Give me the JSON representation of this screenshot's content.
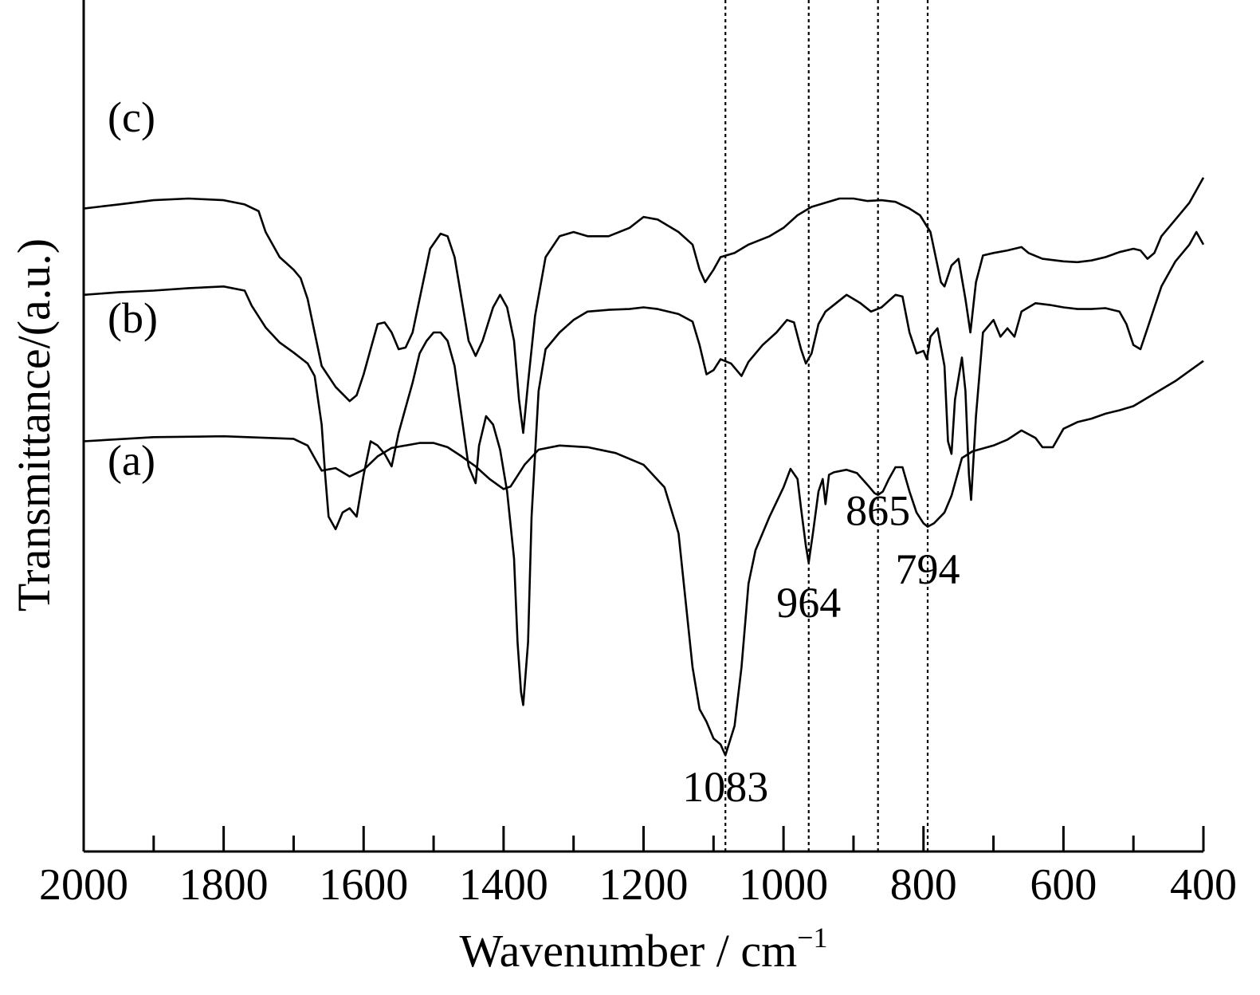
{
  "chart_data": {
    "type": "line",
    "xlabel": "Wavenumber / cm",
    "xlabel_sup": "−1",
    "ylabel": "Transmittance/(a.u.)",
    "xlim": [
      2000,
      400
    ],
    "x_reversed": true,
    "x_ticks": [
      "2000",
      "1800",
      "1600",
      "1400",
      "1200",
      "1000",
      "800",
      "600",
      "400"
    ],
    "x_tick_values": [
      2000,
      1800,
      1600,
      1400,
      1200,
      1000,
      800,
      600,
      400
    ],
    "x_minor_step": 100,
    "ylim": [
      0,
      100
    ],
    "y_ticks_shown": false,
    "grid": false,
    "series": [
      {
        "name": "(a)",
        "points": [
          [
            2000,
            49
          ],
          [
            1900,
            49.5
          ],
          [
            1800,
            49.6
          ],
          [
            1700,
            49.3
          ],
          [
            1680,
            48.5
          ],
          [
            1660,
            45.5
          ],
          [
            1640,
            45.8
          ],
          [
            1620,
            44.8
          ],
          [
            1600,
            45.6
          ],
          [
            1580,
            47.2
          ],
          [
            1560,
            48.2
          ],
          [
            1520,
            48.8
          ],
          [
            1500,
            48.8
          ],
          [
            1480,
            48.3
          ],
          [
            1460,
            47.2
          ],
          [
            1440,
            46
          ],
          [
            1420,
            44.5
          ],
          [
            1400,
            43.3
          ],
          [
            1390,
            43.6
          ],
          [
            1370,
            46.2
          ],
          [
            1350,
            48
          ],
          [
            1320,
            48.5
          ],
          [
            1280,
            48.3
          ],
          [
            1240,
            47.6
          ],
          [
            1200,
            46.2
          ],
          [
            1170,
            43.5
          ],
          [
            1150,
            38
          ],
          [
            1140,
            30
          ],
          [
            1130,
            22
          ],
          [
            1120,
            17
          ],
          [
            1110,
            15.5
          ],
          [
            1100,
            13.5
          ],
          [
            1090,
            12.8
          ],
          [
            1083,
            11.5
          ],
          [
            1070,
            15
          ],
          [
            1060,
            22
          ],
          [
            1050,
            32
          ],
          [
            1040,
            36
          ],
          [
            1020,
            40
          ],
          [
            1000,
            43.5
          ],
          [
            990,
            45.7
          ],
          [
            980,
            44.5
          ],
          [
            975,
            41
          ],
          [
            968,
            36.5
          ],
          [
            964,
            34.5
          ],
          [
            958,
            38
          ],
          [
            950,
            43
          ],
          [
            944,
            44.5
          ],
          [
            940,
            41.5
          ],
          [
            935,
            45
          ],
          [
            928,
            45.3
          ],
          [
            910,
            45.6
          ],
          [
            895,
            45.2
          ],
          [
            880,
            43.8
          ],
          [
            870,
            42.8
          ],
          [
            865,
            42.6
          ],
          [
            858,
            43
          ],
          [
            850,
            44.4
          ],
          [
            840,
            45.9
          ],
          [
            830,
            45.9
          ],
          [
            820,
            43
          ],
          [
            810,
            40.5
          ],
          [
            800,
            39.2
          ],
          [
            794,
            38.8
          ],
          [
            785,
            39.2
          ],
          [
            770,
            40.5
          ],
          [
            760,
            42.5
          ],
          [
            745,
            47
          ],
          [
            730,
            47.8
          ],
          [
            700,
            48.5
          ],
          [
            680,
            49.2
          ],
          [
            660,
            50.3
          ],
          [
            640,
            49.4
          ],
          [
            630,
            48.3
          ],
          [
            615,
            48.3
          ],
          [
            600,
            50.5
          ],
          [
            580,
            51.3
          ],
          [
            560,
            51.7
          ],
          [
            540,
            52.3
          ],
          [
            520,
            52.7
          ],
          [
            500,
            53.2
          ],
          [
            480,
            54.2
          ],
          [
            460,
            55.2
          ],
          [
            440,
            56.2
          ],
          [
            420,
            57.4
          ],
          [
            400,
            58.6
          ]
        ]
      },
      {
        "name": "(b)",
        "points": [
          [
            2000,
            66.5
          ],
          [
            1950,
            66.8
          ],
          [
            1900,
            67
          ],
          [
            1850,
            67.3
          ],
          [
            1800,
            67.5
          ],
          [
            1770,
            67
          ],
          [
            1760,
            65.2
          ],
          [
            1740,
            62.6
          ],
          [
            1720,
            60.8
          ],
          [
            1700,
            59.6
          ],
          [
            1680,
            58.3
          ],
          [
            1670,
            56.8
          ],
          [
            1660,
            51
          ],
          [
            1655,
            45
          ],
          [
            1650,
            40
          ],
          [
            1640,
            38.5
          ],
          [
            1630,
            40.5
          ],
          [
            1620,
            41
          ],
          [
            1610,
            40
          ],
          [
            1600,
            45
          ],
          [
            1590,
            49
          ],
          [
            1580,
            48.5
          ],
          [
            1570,
            47.5
          ],
          [
            1560,
            46
          ],
          [
            1550,
            50
          ],
          [
            1540,
            53
          ],
          [
            1530,
            56
          ],
          [
            1520,
            59.5
          ],
          [
            1510,
            61
          ],
          [
            1500,
            62
          ],
          [
            1490,
            62
          ],
          [
            1480,
            61
          ],
          [
            1470,
            58
          ],
          [
            1460,
            52
          ],
          [
            1450,
            46
          ],
          [
            1440,
            44
          ],
          [
            1435,
            48.5
          ],
          [
            1425,
            52
          ],
          [
            1415,
            51
          ],
          [
            1405,
            48
          ],
          [
            1395,
            43
          ],
          [
            1385,
            35
          ],
          [
            1380,
            25
          ],
          [
            1375,
            19
          ],
          [
            1372,
            17.5
          ],
          [
            1365,
            25
          ],
          [
            1360,
            40
          ],
          [
            1350,
            55
          ],
          [
            1340,
            60
          ],
          [
            1320,
            62
          ],
          [
            1300,
            63.5
          ],
          [
            1280,
            64.5
          ],
          [
            1250,
            64.7
          ],
          [
            1220,
            64.8
          ],
          [
            1200,
            65
          ],
          [
            1180,
            64.8
          ],
          [
            1150,
            64.2
          ],
          [
            1130,
            63.3
          ],
          [
            1120,
            60.5
          ],
          [
            1110,
            57
          ],
          [
            1100,
            57.5
          ],
          [
            1090,
            58.8
          ],
          [
            1075,
            58.3
          ],
          [
            1060,
            56.8
          ],
          [
            1050,
            58.5
          ],
          [
            1030,
            60.5
          ],
          [
            1010,
            62
          ],
          [
            995,
            63.5
          ],
          [
            985,
            63.2
          ],
          [
            975,
            60
          ],
          [
            968,
            58.3
          ],
          [
            960,
            59.5
          ],
          [
            950,
            63
          ],
          [
            940,
            64.5
          ],
          [
            925,
            65.5
          ],
          [
            910,
            66.5
          ],
          [
            890,
            65.5
          ],
          [
            875,
            64.5
          ],
          [
            860,
            65
          ],
          [
            840,
            66.5
          ],
          [
            830,
            66.3
          ],
          [
            820,
            62
          ],
          [
            810,
            59.5
          ],
          [
            800,
            59.8
          ],
          [
            795,
            58.8
          ],
          [
            790,
            61.5
          ],
          [
            780,
            62.5
          ],
          [
            770,
            58
          ],
          [
            765,
            49
          ],
          [
            760,
            47.5
          ],
          [
            755,
            54
          ],
          [
            745,
            59
          ],
          [
            740,
            55
          ],
          [
            735,
            45
          ],
          [
            732,
            42
          ],
          [
            725,
            52
          ],
          [
            715,
            62
          ],
          [
            700,
            63.5
          ],
          [
            690,
            61.5
          ],
          [
            680,
            62.5
          ],
          [
            670,
            61.5
          ],
          [
            660,
            64.5
          ],
          [
            640,
            65.5
          ],
          [
            620,
            65.3
          ],
          [
            600,
            65
          ],
          [
            580,
            64.8
          ],
          [
            560,
            64.8
          ],
          [
            540,
            64.9
          ],
          [
            520,
            64.5
          ],
          [
            510,
            63
          ],
          [
            500,
            60.5
          ],
          [
            490,
            60
          ],
          [
            480,
            62.5
          ],
          [
            470,
            65
          ],
          [
            460,
            67.5
          ],
          [
            440,
            70.5
          ],
          [
            420,
            72.5
          ],
          [
            410,
            74
          ],
          [
            400,
            72.5
          ]
        ]
      },
      {
        "name": "(c)",
        "points": [
          [
            2000,
            76.8
          ],
          [
            1950,
            77.3
          ],
          [
            1900,
            77.8
          ],
          [
            1850,
            78
          ],
          [
            1800,
            77.8
          ],
          [
            1770,
            77.3
          ],
          [
            1750,
            76.5
          ],
          [
            1740,
            74
          ],
          [
            1720,
            71
          ],
          [
            1700,
            69.5
          ],
          [
            1690,
            68.5
          ],
          [
            1680,
            66
          ],
          [
            1670,
            62
          ],
          [
            1660,
            58
          ],
          [
            1640,
            55.5
          ],
          [
            1620,
            53.8
          ],
          [
            1610,
            54.5
          ],
          [
            1600,
            57
          ],
          [
            1590,
            60
          ],
          [
            1580,
            63
          ],
          [
            1570,
            63.2
          ],
          [
            1560,
            62
          ],
          [
            1550,
            60
          ],
          [
            1540,
            60.2
          ],
          [
            1530,
            62
          ],
          [
            1520,
            66
          ],
          [
            1505,
            72
          ],
          [
            1490,
            73.8
          ],
          [
            1480,
            73.5
          ],
          [
            1470,
            71
          ],
          [
            1460,
            66
          ],
          [
            1450,
            61
          ],
          [
            1440,
            59.2
          ],
          [
            1430,
            61
          ],
          [
            1415,
            65
          ],
          [
            1405,
            66.5
          ],
          [
            1395,
            65
          ],
          [
            1385,
            61
          ],
          [
            1378,
            54
          ],
          [
            1372,
            50
          ],
          [
            1365,
            56
          ],
          [
            1355,
            64
          ],
          [
            1340,
            71
          ],
          [
            1320,
            73.5
          ],
          [
            1300,
            74
          ],
          [
            1280,
            73.5
          ],
          [
            1250,
            73.5
          ],
          [
            1220,
            74.5
          ],
          [
            1200,
            75.8
          ],
          [
            1180,
            75.5
          ],
          [
            1150,
            74
          ],
          [
            1130,
            72.5
          ],
          [
            1120,
            69.5
          ],
          [
            1112,
            68
          ],
          [
            1100,
            69.5
          ],
          [
            1090,
            71
          ],
          [
            1070,
            71.5
          ],
          [
            1050,
            72.5
          ],
          [
            1020,
            73.5
          ],
          [
            1000,
            74.5
          ],
          [
            980,
            76
          ],
          [
            960,
            77
          ],
          [
            940,
            77.5
          ],
          [
            920,
            78
          ],
          [
            900,
            78
          ],
          [
            880,
            77.7
          ],
          [
            860,
            77.8
          ],
          [
            840,
            77.6
          ],
          [
            820,
            76.8
          ],
          [
            805,
            76
          ],
          [
            790,
            74
          ],
          [
            780,
            70
          ],
          [
            775,
            68
          ],
          [
            770,
            67.5
          ],
          [
            760,
            70
          ],
          [
            750,
            70.8
          ],
          [
            740,
            66
          ],
          [
            733,
            62
          ],
          [
            725,
            68
          ],
          [
            715,
            71.2
          ],
          [
            700,
            71.5
          ],
          [
            680,
            71.8
          ],
          [
            660,
            72.2
          ],
          [
            650,
            71.5
          ],
          [
            630,
            70.8
          ],
          [
            600,
            70.5
          ],
          [
            580,
            70.4
          ],
          [
            560,
            70.6
          ],
          [
            540,
            71
          ],
          [
            520,
            71.6
          ],
          [
            500,
            72
          ],
          [
            490,
            71.8
          ],
          [
            480,
            70.8
          ],
          [
            470,
            71.5
          ],
          [
            460,
            73.5
          ],
          [
            440,
            75.5
          ],
          [
            420,
            77.5
          ],
          [
            410,
            79
          ],
          [
            400,
            80.5
          ]
        ]
      }
    ],
    "series_labels": [
      {
        "text": "(a)",
        "y": 45
      },
      {
        "text": "(b)",
        "y": 62
      },
      {
        "text": "(c)",
        "y": 86
      }
    ],
    "reference_lines": [
      1083,
      964,
      865,
      794
    ],
    "annotations": [
      {
        "text": "1083",
        "x": 1083,
        "y": 6
      },
      {
        "text": "964",
        "x": 964,
        "y": 28
      },
      {
        "text": "865",
        "x": 865,
        "y": 39
      },
      {
        "text": "794",
        "x": 794,
        "y": 32
      }
    ]
  }
}
